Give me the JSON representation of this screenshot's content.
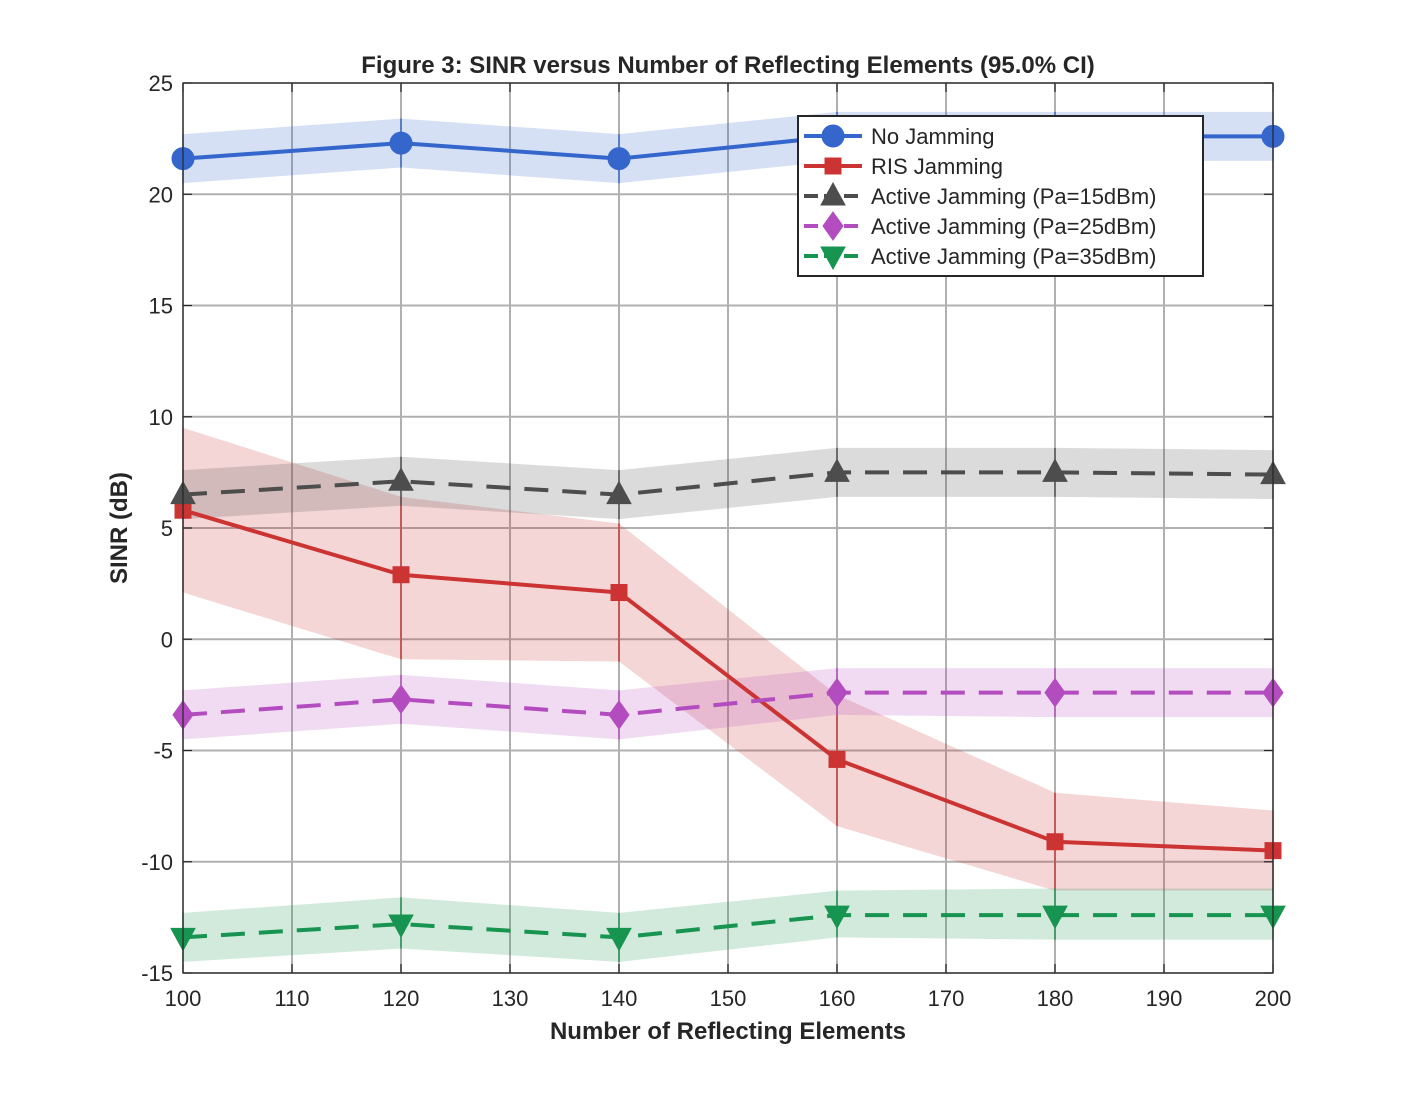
{
  "chart_data": {
    "type": "line",
    "title": "Figure 3: SINR versus Number of Reflecting Elements (95.0% CI)",
    "xlabel": "Number of Reflecting Elements",
    "ylabel": "SINR (dB)",
    "xlim": [
      100,
      200
    ],
    "ylim": [
      -15,
      25
    ],
    "xticks": [
      100,
      110,
      120,
      130,
      140,
      150,
      160,
      170,
      180,
      190,
      200
    ],
    "yticks": [
      -15,
      -10,
      -5,
      0,
      5,
      10,
      15,
      20,
      25
    ],
    "grid": true,
    "legend_position": "top-right",
    "x": [
      100,
      120,
      140,
      160,
      180,
      200
    ],
    "series": [
      {
        "name": "No Jamming",
        "color": "#3466CC",
        "marker": "circle",
        "line_style": "solid",
        "values": [
          21.6,
          22.3,
          21.6,
          22.6,
          22.6,
          22.6
        ],
        "ci_lower": [
          20.5,
          21.2,
          20.5,
          21.5,
          21.5,
          21.5
        ],
        "ci_upper": [
          22.7,
          23.4,
          22.7,
          23.7,
          23.7,
          23.7
        ]
      },
      {
        "name": "RIS Jamming",
        "color": "#CC3333",
        "marker": "square",
        "line_style": "solid",
        "values": [
          5.8,
          2.9,
          2.1,
          -5.4,
          -9.1,
          -9.5
        ],
        "ci_lower": [
          2.1,
          -0.9,
          -1.0,
          -8.4,
          -11.3,
          -11.3
        ],
        "ci_upper": [
          9.5,
          6.4,
          5.2,
          -2.5,
          -6.9,
          -7.7
        ]
      },
      {
        "name": "Active Jamming (Pa=15dBm)",
        "color": "#4D4D4D",
        "marker": "triangle-up",
        "line_style": "dashed",
        "values": [
          6.5,
          7.1,
          6.5,
          7.5,
          7.5,
          7.4
        ],
        "ci_lower": [
          5.4,
          6.0,
          5.4,
          6.4,
          6.4,
          6.3
        ],
        "ci_upper": [
          7.6,
          8.2,
          7.6,
          8.6,
          8.6,
          8.5
        ]
      },
      {
        "name": "Active Jamming (Pa=25dBm)",
        "color": "#B34DBF",
        "marker": "diamond",
        "line_style": "dashed",
        "values": [
          -3.4,
          -2.7,
          -3.4,
          -2.4,
          -2.4,
          -2.4
        ],
        "ci_lower": [
          -4.5,
          -3.8,
          -4.5,
          -3.4,
          -3.5,
          -3.5
        ],
        "ci_upper": [
          -2.3,
          -1.6,
          -2.3,
          -1.3,
          -1.3,
          -1.3
        ]
      },
      {
        "name": "Active Jamming (Pa=35dBm)",
        "color": "#17944F",
        "marker": "triangle-down",
        "line_style": "dashed",
        "values": [
          -13.4,
          -12.8,
          -13.4,
          -12.4,
          -12.4,
          -12.4
        ],
        "ci_lower": [
          -14.5,
          -13.9,
          -14.5,
          -13.4,
          -13.5,
          -13.5
        ],
        "ci_upper": [
          -12.3,
          -11.6,
          -12.3,
          -11.3,
          -11.2,
          -11.2
        ]
      }
    ]
  }
}
